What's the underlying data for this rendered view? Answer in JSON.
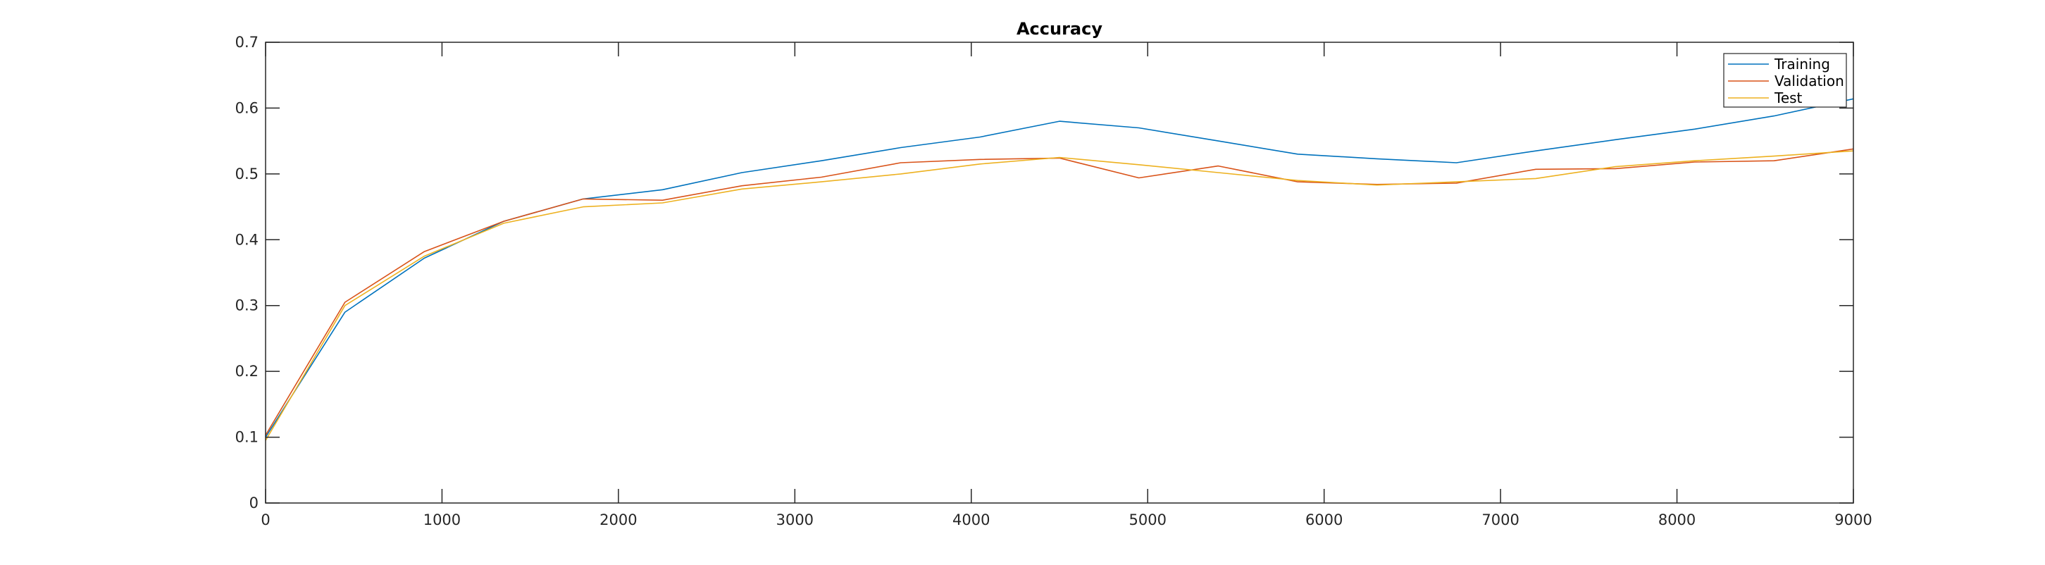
{
  "chart_data": {
    "type": "line",
    "title": "Accuracy",
    "xlabel": "",
    "ylabel": "",
    "xlim": [
      0,
      9000
    ],
    "ylim": [
      0,
      0.7
    ],
    "xticks": [
      0,
      1000,
      2000,
      3000,
      4000,
      5000,
      6000,
      7000,
      8000,
      9000
    ],
    "xtick_labels": [
      "0",
      "1000",
      "2000",
      "3000",
      "4000",
      "5000",
      "6000",
      "7000",
      "8000",
      "9000"
    ],
    "yticks": [
      0,
      0.1,
      0.2,
      0.3,
      0.4,
      0.5,
      0.6,
      0.7
    ],
    "ytick_labels": [
      "0",
      "0.1",
      "0.2",
      "0.3",
      "0.4",
      "0.5",
      "0.6",
      "0.7"
    ],
    "grid": false,
    "legend_position": "top-right",
    "x": [
      0,
      450,
      900,
      1350,
      1800,
      2250,
      2700,
      3150,
      3600,
      4050,
      4500,
      4950,
      5400,
      5850,
      6300,
      6750,
      7200,
      7650,
      8100,
      8550,
      9000
    ],
    "series": [
      {
        "name": "Training",
        "color": "#0072BD",
        "values": [
          0.1,
          0.29,
          0.372,
          0.428,
          0.462,
          0.476,
          0.502,
          0.52,
          0.54,
          0.556,
          0.58,
          0.57,
          0.55,
          0.53,
          0.523,
          0.517,
          0.535,
          0.552,
          0.568,
          0.588,
          0.614
        ]
      },
      {
        "name": "Validation",
        "color": "#D95319",
        "values": [
          0.103,
          0.305,
          0.382,
          0.428,
          0.462,
          0.46,
          0.482,
          0.495,
          0.517,
          0.522,
          0.524,
          0.494,
          0.512,
          0.488,
          0.484,
          0.486,
          0.507,
          0.508,
          0.518,
          0.52,
          0.538
        ]
      },
      {
        "name": "Test",
        "color": "#EDB120",
        "values": [
          0.095,
          0.3,
          0.375,
          0.425,
          0.45,
          0.456,
          0.477,
          0.488,
          0.5,
          0.515,
          0.525,
          0.514,
          0.502,
          0.49,
          0.483,
          0.488,
          0.493,
          0.511,
          0.52,
          0.527,
          0.535
        ]
      }
    ]
  }
}
